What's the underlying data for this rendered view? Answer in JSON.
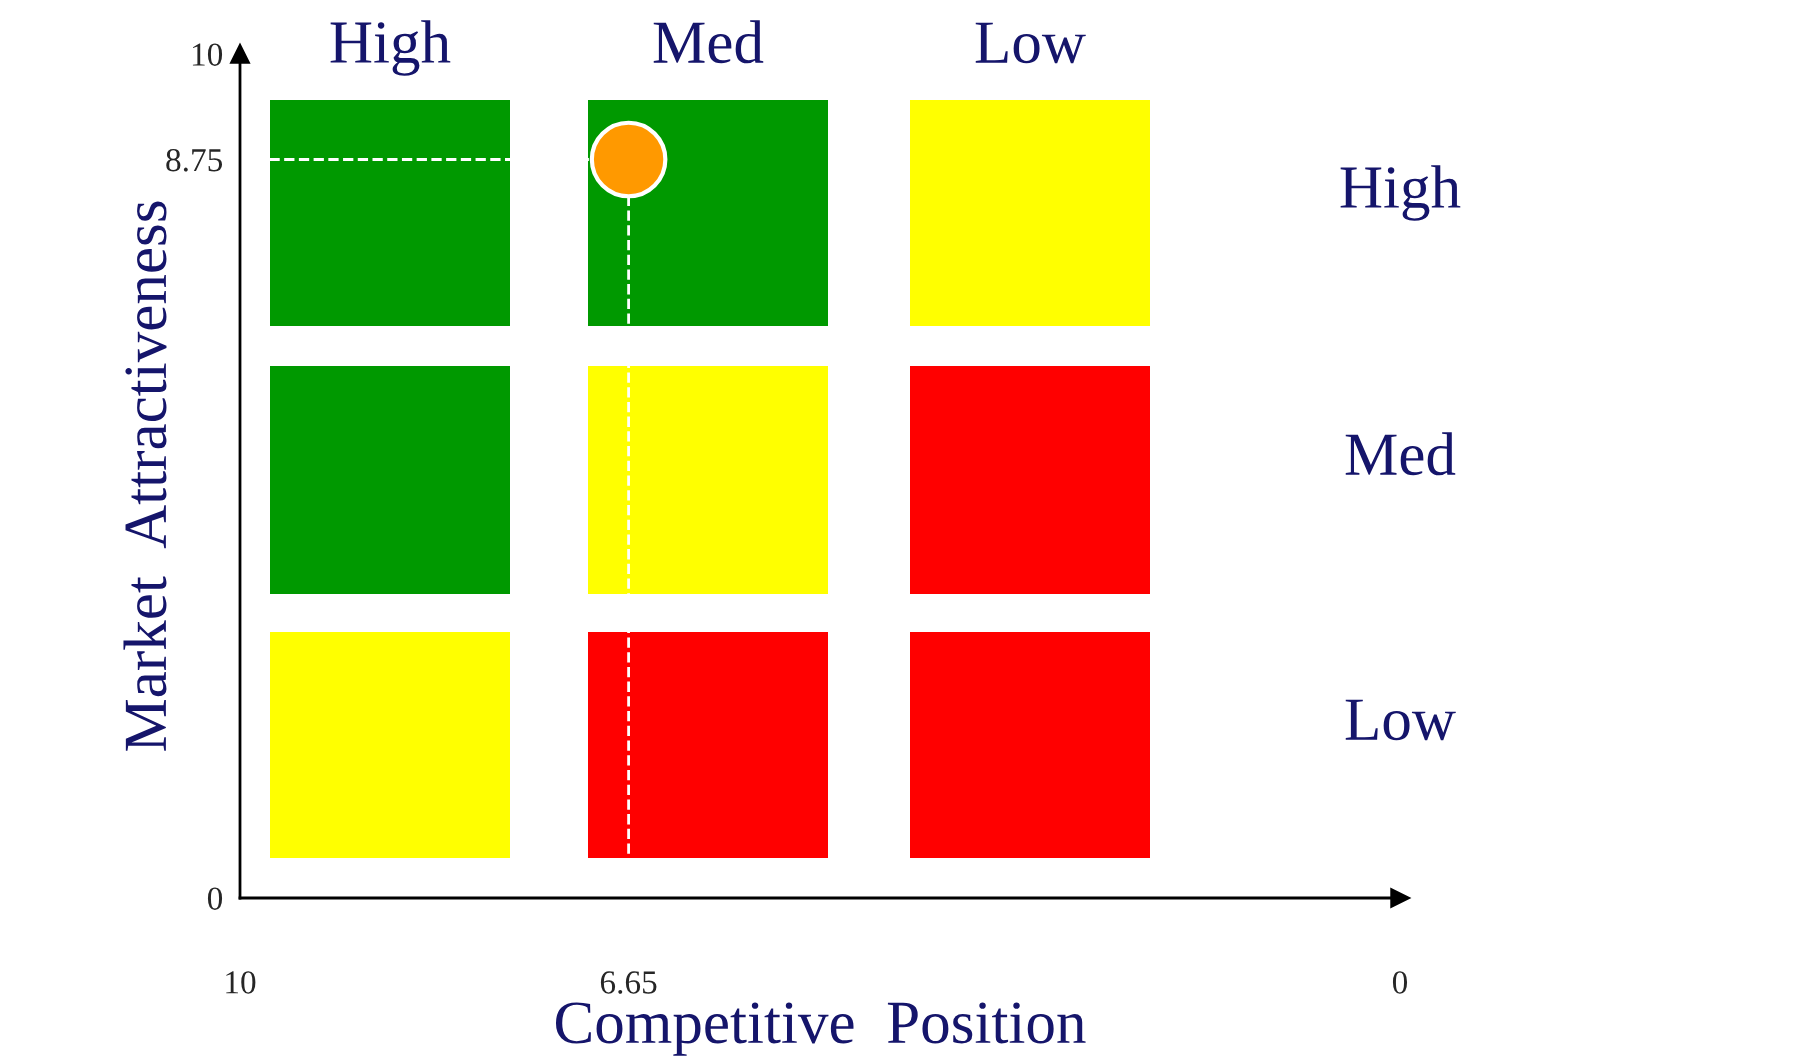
{
  "chart_data": {
    "type": "scatter",
    "xlabel": "Competitive  Position",
    "ylabel": "Market  Attractiveness",
    "xlim": [
      10,
      0
    ],
    "ylim": [
      0,
      10
    ],
    "xticks": [
      10,
      6.65,
      0
    ],
    "yticks": [
      0,
      8.75,
      10
    ],
    "series": [
      {
        "color": "#ff9900",
        "x": [
          6.65
        ],
        "values": [
          8.75
        ]
      }
    ],
    "ref_lines": [
      {
        "axis": "y",
        "value": 8.75,
        "color": "#ffffff",
        "line_style": "dashed"
      },
      {
        "axis": "x",
        "value": 6.65,
        "color": "#ffffff",
        "line_style": "dashed"
      }
    ],
    "annotations": [
      "High",
      "Med",
      "Low",
      "High",
      "Med",
      "Low"
    ],
    "marker": "circle",
    "grid": false
  }
}
